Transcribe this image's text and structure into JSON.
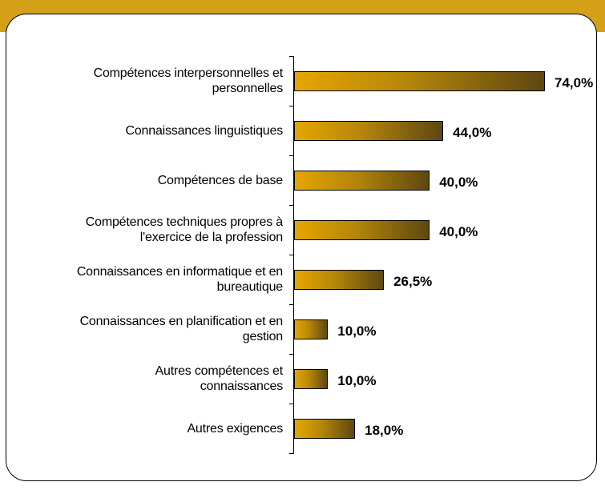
{
  "chart_data": {
    "type": "bar",
    "orientation": "horizontal",
    "color": "#b5860a",
    "categories": [
      "Compétences interpersonnelles et\npersonnelles",
      "Connaissances linguistiques",
      "Compétences de base",
      "Compétences techniques propres à\nl'exercice de la profession",
      "Connaissances en informatique et en\nbureautique",
      "Connaissances en planification et en\ngestion",
      "Autres compétences et\nconnaissances",
      "Autres exigences"
    ],
    "values": [
      74,
      44,
      40,
      40,
      26.5,
      10,
      10,
      18
    ],
    "value_labels": [
      "74,0%",
      "44,0%",
      "40,0%",
      "40,0%",
      "26,5%",
      "10,0%",
      "10,0%",
      "18,0%"
    ]
  }
}
